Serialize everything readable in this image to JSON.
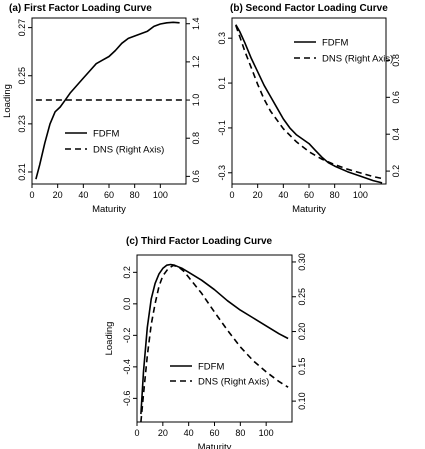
{
  "chart_data": [
    {
      "type": "line",
      "title": "(a) First Factor Loading Curve",
      "xlabel": "Maturity",
      "ylabel": "Loading",
      "xlim": [
        0,
        120
      ],
      "ylim": [
        0.205,
        0.274
      ],
      "y2lim": [
        0.56,
        1.43
      ],
      "xticks": [
        "0",
        "20",
        "40",
        "60",
        "80",
        "100"
      ],
      "yticks": [
        "0.21",
        "0.23",
        "0.25",
        "0.27"
      ],
      "y2ticks": [
        "0.6",
        "0.8",
        "1.0",
        "1.2",
        "1.4"
      ],
      "legend_position": "center-right",
      "series": [
        {
          "name": "FDFM",
          "style": "solid",
          "axis": "left",
          "x": [
            3,
            6,
            10,
            14,
            18,
            22,
            26,
            30,
            35,
            40,
            45,
            50,
            55,
            60,
            65,
            70,
            75,
            80,
            85,
            90,
            95,
            100,
            105,
            110,
            115
          ],
          "y": [
            0.207,
            0.213,
            0.222,
            0.23,
            0.235,
            0.237,
            0.24,
            0.243,
            0.246,
            0.249,
            0.252,
            0.255,
            0.2565,
            0.258,
            0.2605,
            0.2635,
            0.2655,
            0.2665,
            0.2675,
            0.2685,
            0.2705,
            0.2715,
            0.272,
            0.2722,
            0.272
          ]
        },
        {
          "name": "DNS (Right Axis)",
          "style": "dashed",
          "axis": "right",
          "x": [
            3,
            117
          ],
          "y": [
            1.0,
            1.0
          ]
        }
      ]
    },
    {
      "type": "line",
      "title": "(b) Second Factor Loading Curve",
      "xlabel": "Maturity",
      "xlim": [
        0,
        120
      ],
      "ylim": [
        -0.35,
        0.39
      ],
      "y2lim": [
        0.13,
        1.03
      ],
      "xticks": [
        "0",
        "20",
        "40",
        "60",
        "80",
        "100"
      ],
      "yticks": [
        "-0.3",
        "-0.1",
        "0.1",
        "0.3"
      ],
      "y2ticks": [
        "0.2",
        "0.4",
        "0.6",
        "0.8"
      ],
      "legend_position": "top-right",
      "series": [
        {
          "name": "FDFM",
          "style": "solid",
          "axis": "left",
          "x": [
            3,
            6,
            10,
            15,
            20,
            25,
            30,
            35,
            40,
            45,
            50,
            55,
            60,
            65,
            70,
            75,
            80,
            90,
            100,
            110,
            117
          ],
          "y": [
            0.36,
            0.33,
            0.28,
            0.21,
            0.15,
            0.09,
            0.04,
            -0.01,
            -0.06,
            -0.1,
            -0.13,
            -0.15,
            -0.17,
            -0.2,
            -0.23,
            -0.255,
            -0.27,
            -0.295,
            -0.315,
            -0.335,
            -0.345
          ]
        },
        {
          "name": "DNS (Right Axis)",
          "style": "dashed",
          "axis": "right",
          "x": [
            3,
            6,
            10,
            15,
            20,
            25,
            30,
            40,
            50,
            60,
            70,
            80,
            90,
            100,
            110,
            117
          ],
          "y": [
            0.99,
            0.93,
            0.85,
            0.76,
            0.67,
            0.59,
            0.525,
            0.43,
            0.36,
            0.305,
            0.265,
            0.235,
            0.21,
            0.19,
            0.17,
            0.16
          ]
        }
      ]
    },
    {
      "type": "line",
      "title": "(c) Third Factor Loading Curve",
      "xlabel": "Maturity",
      "ylabel": "Loading",
      "xlim": [
        0,
        120
      ],
      "ylim": [
        -0.75,
        0.31
      ],
      "y2lim": [
        0.07,
        0.31
      ],
      "xticks": [
        "0",
        "20",
        "40",
        "60",
        "80",
        "100"
      ],
      "yticks": [
        "-0.6",
        "-0.4",
        "-0.2",
        "0.0",
        "0.2"
      ],
      "y2ticks": [
        "0.10",
        "0.15",
        "0.20",
        "0.25",
        "0.30"
      ],
      "legend_position": "bottom-center",
      "series": [
        {
          "name": "FDFM",
          "style": "solid",
          "axis": "left",
          "x": [
            3,
            5,
            8,
            11,
            14,
            17,
            20,
            23,
            26,
            29,
            32,
            35,
            40,
            50,
            60,
            70,
            80,
            90,
            100,
            110,
            117
          ],
          "y": [
            -0.7,
            -0.43,
            -0.15,
            0.03,
            0.13,
            0.19,
            0.225,
            0.245,
            0.25,
            0.245,
            0.235,
            0.225,
            0.2,
            0.15,
            0.09,
            0.02,
            -0.04,
            -0.09,
            -0.14,
            -0.19,
            -0.22
          ]
        },
        {
          "name": "DNS (Right Axis)",
          "style": "dashed",
          "axis": "right",
          "x": [
            3,
            5,
            8,
            11,
            14,
            17,
            20,
            24,
            28,
            32,
            36,
            40,
            50,
            60,
            70,
            80,
            90,
            100,
            110,
            117
          ],
          "y": [
            0.07,
            0.11,
            0.165,
            0.21,
            0.24,
            0.265,
            0.28,
            0.29,
            0.295,
            0.293,
            0.287,
            0.278,
            0.255,
            0.228,
            0.202,
            0.178,
            0.158,
            0.142,
            0.128,
            0.12
          ]
        }
      ]
    }
  ]
}
